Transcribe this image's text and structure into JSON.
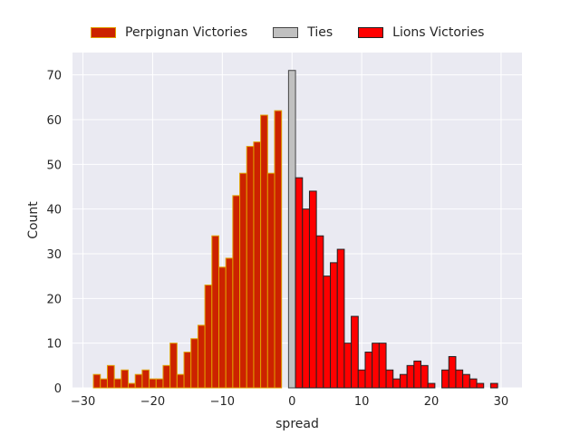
{
  "chart_data": {
    "type": "bar",
    "title": "",
    "xlabel": "spread",
    "ylabel": "Count",
    "xlim": [
      -31.5,
      33
    ],
    "ylim": [
      0,
      75
    ],
    "xticks": [
      -30,
      -20,
      -10,
      0,
      10,
      20,
      30
    ],
    "xtick_labels": [
      "−30",
      "−20",
      "−10",
      "0",
      "10",
      "20",
      "30"
    ],
    "yticks": [
      0,
      10,
      20,
      30,
      40,
      50,
      60,
      70
    ],
    "ytick_labels": [
      "0",
      "10",
      "20",
      "30",
      "40",
      "50",
      "60",
      "70"
    ],
    "grid": true,
    "legend_position": "top-center",
    "bin_width": 1,
    "series": [
      {
        "name": "Perpignan Victories",
        "color": "#cc2200",
        "edgecolor": "#e0a000",
        "x": [
          -28,
          -27,
          -26,
          -25,
          -24,
          -23,
          -22,
          -21,
          -20,
          -19,
          -18,
          -17,
          -16,
          -15,
          -14,
          -13,
          -12,
          -11,
          -10,
          -9,
          -8,
          -7,
          -6,
          -5,
          -4,
          -3,
          -2,
          -1
        ],
        "values": [
          3,
          2,
          5,
          2,
          4,
          1,
          3,
          4,
          2,
          2,
          5,
          10,
          3,
          8,
          11,
          14,
          23,
          34,
          27,
          29,
          43,
          48,
          54,
          55,
          61,
          48,
          62,
          0
        ]
      },
      {
        "name": "Ties",
        "color": "#c0c0c0",
        "edgecolor": "#444444",
        "x": [
          0
        ],
        "values": [
          71
        ]
      },
      {
        "name": "Lions Victories",
        "color": "#ff0000",
        "edgecolor": "#222222",
        "x": [
          1,
          2,
          3,
          4,
          5,
          6,
          7,
          8,
          9,
          10,
          11,
          12,
          13,
          14,
          15,
          16,
          17,
          18,
          19,
          20,
          21,
          22,
          23,
          24,
          25,
          26,
          27,
          28,
          29,
          30
        ],
        "values": [
          47,
          40,
          44,
          34,
          25,
          28,
          31,
          10,
          16,
          4,
          8,
          10,
          10,
          4,
          2,
          3,
          5,
          6,
          5,
          1,
          0,
          4,
          7,
          4,
          3,
          2,
          1,
          0,
          1,
          0
        ]
      }
    ]
  }
}
